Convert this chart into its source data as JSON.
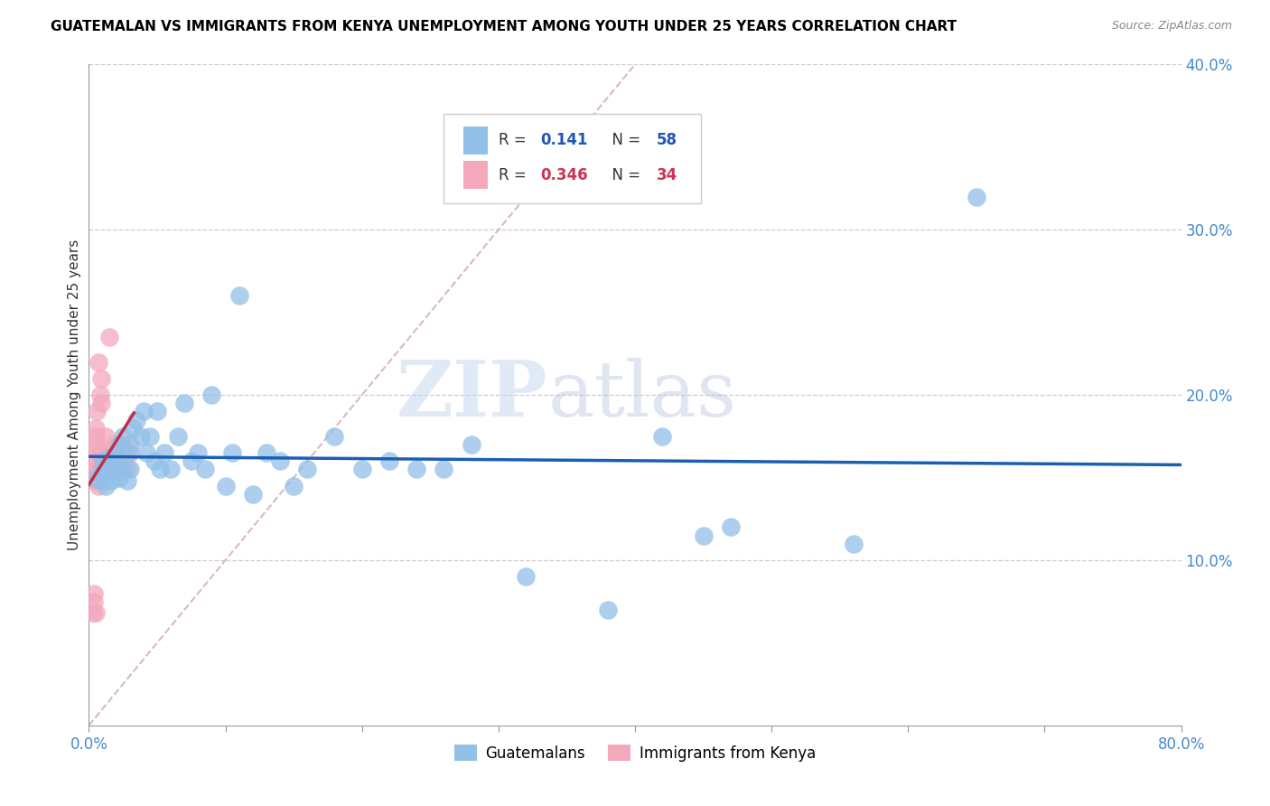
{
  "title": "GUATEMALAN VS IMMIGRANTS FROM KENYA UNEMPLOYMENT AMONG YOUTH UNDER 25 YEARS CORRELATION CHART",
  "source": "Source: ZipAtlas.com",
  "ylabel": "Unemployment Among Youth under 25 years",
  "xlim": [
    0,
    0.8
  ],
  "ylim": [
    0,
    0.4
  ],
  "blue_color": "#92c0e8",
  "pink_color": "#f4a8bc",
  "blue_line_color": "#1a5fb4",
  "pink_line_color": "#c0304a",
  "diagonal_color": "#d0c8d0",
  "watermark_zip": "ZIP",
  "watermark_atlas": "atlas",
  "blue_r": 0.141,
  "blue_n": 58,
  "pink_r": 0.346,
  "pink_n": 34,
  "blue_scatter_x": [
    0.005,
    0.008,
    0.01,
    0.01,
    0.012,
    0.013,
    0.015,
    0.015,
    0.016,
    0.018,
    0.02,
    0.02,
    0.022,
    0.022,
    0.025,
    0.025,
    0.028,
    0.028,
    0.03,
    0.03,
    0.032,
    0.035,
    0.038,
    0.04,
    0.042,
    0.045,
    0.048,
    0.05,
    0.052,
    0.055,
    0.06,
    0.065,
    0.07,
    0.075,
    0.08,
    0.085,
    0.09,
    0.1,
    0.105,
    0.11,
    0.12,
    0.13,
    0.14,
    0.15,
    0.16,
    0.18,
    0.2,
    0.22,
    0.24,
    0.26,
    0.28,
    0.32,
    0.38,
    0.42,
    0.45,
    0.47,
    0.56,
    0.65
  ],
  "blue_scatter_y": [
    0.15,
    0.148,
    0.155,
    0.16,
    0.145,
    0.158,
    0.152,
    0.162,
    0.148,
    0.155,
    0.158,
    0.165,
    0.15,
    0.17,
    0.155,
    0.175,
    0.148,
    0.165,
    0.155,
    0.17,
    0.18,
    0.185,
    0.175,
    0.19,
    0.165,
    0.175,
    0.16,
    0.19,
    0.155,
    0.165,
    0.155,
    0.175,
    0.195,
    0.16,
    0.165,
    0.155,
    0.2,
    0.145,
    0.165,
    0.26,
    0.14,
    0.165,
    0.16,
    0.145,
    0.155,
    0.175,
    0.155,
    0.16,
    0.155,
    0.155,
    0.17,
    0.09,
    0.07,
    0.175,
    0.115,
    0.12,
    0.11,
    0.32
  ],
  "pink_scatter_x": [
    0.003,
    0.003,
    0.004,
    0.004,
    0.005,
    0.005,
    0.005,
    0.005,
    0.005,
    0.005,
    0.005,
    0.005,
    0.005,
    0.006,
    0.006,
    0.007,
    0.007,
    0.008,
    0.008,
    0.008,
    0.009,
    0.009,
    0.01,
    0.01,
    0.012,
    0.013,
    0.015,
    0.015,
    0.018,
    0.02,
    0.022,
    0.025,
    0.028,
    0.03
  ],
  "pink_scatter_y": [
    0.15,
    0.068,
    0.075,
    0.08,
    0.15,
    0.148,
    0.155,
    0.16,
    0.165,
    0.17,
    0.175,
    0.18,
    0.068,
    0.155,
    0.19,
    0.145,
    0.22,
    0.155,
    0.165,
    0.2,
    0.195,
    0.21,
    0.16,
    0.155,
    0.175,
    0.165,
    0.235,
    0.155,
    0.17,
    0.165,
    0.16,
    0.17,
    0.155,
    0.165
  ]
}
